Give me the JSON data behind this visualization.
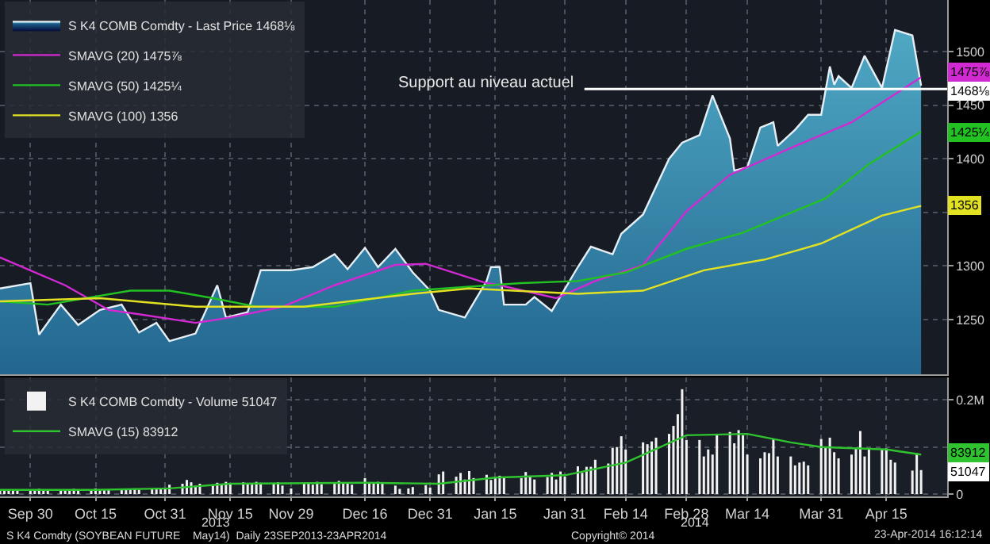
{
  "chart_data": [
    {
      "type": "line",
      "xlim": [
        "2013-09-23",
        "2014-04-29"
      ],
      "ylim": [
        1199,
        1548
      ],
      "xticks": [
        {
          "value": "2013-09-30",
          "label": null
        },
        {
          "value": "2013-10-15",
          "label": null
        },
        {
          "value": "2013-10-31",
          "label": null
        },
        {
          "value": "2013-11-15",
          "label": null
        },
        {
          "value": "2013-11-29",
          "label": null
        },
        {
          "value": "2013-12-16",
          "label": null
        },
        {
          "value": "2013-12-31",
          "label": null
        },
        {
          "value": "2014-01-15",
          "label": null
        },
        {
          "value": "2014-01-31",
          "label": null
        },
        {
          "value": "2014-02-14",
          "label": null
        },
        {
          "value": "2014-02-28",
          "label": null
        },
        {
          "value": "2014-03-14",
          "label": null
        },
        {
          "value": "2014-03-31",
          "label": null
        },
        {
          "value": "2014-04-15",
          "label": null
        }
      ],
      "yticks": [
        1250,
        1300,
        {
          "value": 1350,
          "label": null
        },
        1400,
        1450,
        1500
      ],
      "tick_labels": "y",
      "grid": true,
      "legend": "top left",
      "series": [
        {
          "name": "S K4 COMB Comdty - Last Price 1468⅛",
          "type": "area",
          "color": "#e6eef5",
          "x": [
            "2013-09-23",
            "2013-09-30",
            "2013-10-02",
            "2013-10-07",
            "2013-10-11",
            "2013-10-16",
            "2013-10-21",
            "2013-10-25",
            "2013-10-29",
            "2013-11-01",
            "2013-11-07",
            "2013-11-12",
            "2013-11-14",
            "2013-11-19",
            "2013-11-22",
            "2013-11-29",
            "2013-12-04",
            "2013-12-09",
            "2013-12-12",
            "2013-12-16",
            "2013-12-19",
            "2013-12-23",
            "2013-12-27",
            "2013-12-31",
            "2014-01-02",
            "2014-01-08",
            "2014-01-13",
            "2014-01-14",
            "2014-01-16",
            "2014-01-17",
            "2014-01-22",
            "2014-01-24",
            "2014-01-28",
            "2014-02-03",
            "2014-02-06",
            "2014-02-11",
            "2014-02-13",
            "2014-02-18",
            "2014-02-24",
            "2014-02-27",
            "2014-03-03",
            "2014-03-06",
            "2014-03-10",
            "2014-03-11",
            "2014-03-14",
            "2014-03-17",
            "2014-03-20",
            "2014-03-21",
            "2014-03-25",
            "2014-03-28",
            "2014-03-31",
            "2014-04-02",
            "2014-04-03",
            "2014-04-04",
            "2014-04-07",
            "2014-04-10",
            "2014-04-14",
            "2014-04-17",
            "2014-04-21",
            "2014-04-23"
          ],
          "values": [
            1279,
            1284,
            1236,
            1264,
            1245,
            1259,
            1264,
            1238,
            1247,
            1230,
            1237,
            1282,
            1252,
            1257,
            1296,
            1296,
            1299,
            1311,
            1297,
            1317,
            1299,
            1316,
            1294,
            1277,
            1259,
            1252,
            1286,
            1299,
            1299,
            1264,
            1264,
            1271,
            1258,
            1299,
            1318,
            1311,
            1330,
            1348,
            1400,
            1415,
            1422,
            1459,
            1419,
            1389,
            1392,
            1429,
            1434,
            1412,
            1427,
            1441,
            1441,
            1486,
            1469,
            1477,
            1466,
            1496,
            1466,
            1520,
            1515,
            1468.125
          ]
        },
        {
          "name": "SMAVG (20) 1475⅞",
          "color": "#d22ad2",
          "x": [
            "2013-09-23",
            "2013-10-08",
            "2013-10-18",
            "2013-10-25",
            "2013-11-07",
            "2013-11-15",
            "2013-11-27",
            "2013-12-09",
            "2013-12-23",
            "2013-12-30",
            "2014-01-13",
            "2014-01-16",
            "2014-01-29",
            "2014-02-07",
            "2014-02-18",
            "2014-02-28",
            "2014-03-10",
            "2014-03-24",
            "2014-04-07",
            "2014-04-23"
          ],
          "values": [
            1308,
            1282,
            1259,
            1255,
            1247,
            1252,
            1262,
            1282,
            1301,
            1302,
            1284,
            1282,
            1270,
            1286,
            1301,
            1351,
            1385,
            1410,
            1434,
            1475.875
          ]
        },
        {
          "name": "SMAVG (50) 1425¼",
          "color": "#22c222",
          "x": [
            "2013-09-23",
            "2013-10-04",
            "2013-10-23",
            "2013-11-01",
            "2013-11-11",
            "2013-11-21",
            "2013-12-09",
            "2013-12-27",
            "2014-01-21",
            "2014-02-03",
            "2014-02-14",
            "2014-02-28",
            "2014-03-13",
            "2014-04-01",
            "2014-04-11",
            "2014-04-23"
          ],
          "values": [
            1267,
            1264,
            1277,
            1277,
            1270,
            1262,
            1262,
            1277,
            1284,
            1286,
            1294,
            1316,
            1331,
            1363,
            1395,
            1425.25
          ]
        },
        {
          "name": "SMAVG (100) 1356",
          "color": "#e2e222",
          "x": [
            "2013-09-23",
            "2013-10-16",
            "2013-11-07",
            "2013-12-02",
            "2013-12-27",
            "2014-01-09",
            "2014-02-03",
            "2014-02-18",
            "2014-03-04",
            "2014-03-18",
            "2014-03-31",
            "2014-04-14",
            "2014-04-23"
          ],
          "values": [
            1267,
            1270,
            1262,
            1262,
            1274,
            1279,
            1274,
            1277,
            1296,
            1306,
            1321,
            1347,
            1356
          ]
        }
      ],
      "ref_lines": [
        {
          "axis": "y",
          "value": 1465,
          "label": "Support au niveau actuel",
          "color": "#ffffff"
        }
      ],
      "annotations": [
        {
          "text": "1475⅞",
          "x": "2014-04-23",
          "y": 1475.875
        },
        {
          "text": "1468⅛",
          "x": "2014-04-23",
          "y": 1468.125
        },
        {
          "text": "1425¼",
          "x": "2014-04-23",
          "y": 1425.25
        },
        {
          "text": "1356",
          "x": "2014-04-23",
          "y": 1356
        }
      ]
    },
    {
      "type": "bar",
      "xlim": [
        "2013-09-23",
        "2014-04-29"
      ],
      "ylim": [
        -5000,
        248000
      ],
      "xticks": [
        {
          "value": "2013-09-30",
          "label": "Sep 30"
        },
        {
          "value": "2013-10-15",
          "label": "Oct 15"
        },
        {
          "value": "2013-10-31",
          "label": "Oct 31"
        },
        {
          "value": "2013-11-15",
          "label": "Nov 15"
        },
        {
          "value": "2013-11-29",
          "label": "Nov 29"
        },
        {
          "value": "2013-12-16",
          "label": "Dec 16"
        },
        {
          "value": "2013-12-31",
          "label": "Dec 31"
        },
        {
          "value": "2014-01-15",
          "label": "Jan 15"
        },
        {
          "value": "2014-01-31",
          "label": "Jan 31"
        },
        {
          "value": "2014-02-14",
          "label": "Feb 14"
        },
        {
          "value": "2014-02-28",
          "label": "Feb 28"
        },
        {
          "value": "2014-03-14",
          "label": "Mar 14"
        },
        {
          "value": "2014-03-31",
          "label": "Mar 31"
        },
        {
          "value": "2014-04-15",
          "label": "Apr 15"
        }
      ],
      "yticks": [
        0,
        {
          "value": 100000,
          "label": null
        },
        {
          "value": 200000,
          "label": "0.2M"
        }
      ],
      "grid": true,
      "legend": "top left",
      "series": [
        {
          "name": "S K4 COMB Comdty - Volume 51047",
          "color": "#f2f2f2",
          "x": [
            "2013-09-23",
            "2013-09-24",
            "2013-09-25",
            "2013-09-26",
            "2013-09-27",
            "2013-09-30",
            "2013-10-01",
            "2013-10-02",
            "2013-10-03",
            "2013-10-04",
            "2013-10-07",
            "2013-10-08",
            "2013-10-09",
            "2013-10-10",
            "2013-10-11",
            "2013-10-14",
            "2013-10-15",
            "2013-10-16",
            "2013-10-17",
            "2013-10-18",
            "2013-10-21",
            "2013-10-22",
            "2013-10-23",
            "2013-10-24",
            "2013-10-25",
            "2013-10-28",
            "2013-10-29",
            "2013-10-30",
            "2013-10-31",
            "2013-11-01",
            "2013-11-04",
            "2013-11-05",
            "2013-11-06",
            "2013-11-07",
            "2013-11-08",
            "2013-11-11",
            "2013-11-12",
            "2013-11-13",
            "2013-11-14",
            "2013-11-15",
            "2013-11-18",
            "2013-11-19",
            "2013-11-20",
            "2013-11-21",
            "2013-11-22",
            "2013-11-25",
            "2013-11-26",
            "2013-11-27",
            "2013-11-29",
            "2013-12-02",
            "2013-12-03",
            "2013-12-04",
            "2013-12-05",
            "2013-12-06",
            "2013-12-09",
            "2013-12-10",
            "2013-12-11",
            "2013-12-12",
            "2013-12-13",
            "2013-12-16",
            "2013-12-17",
            "2013-12-18",
            "2013-12-19",
            "2013-12-20",
            "2013-12-23",
            "2013-12-24",
            "2013-12-26",
            "2013-12-27",
            "2013-12-30",
            "2013-12-31",
            "2014-01-02",
            "2014-01-03",
            "2014-01-06",
            "2014-01-07",
            "2014-01-08",
            "2014-01-09",
            "2014-01-10",
            "2014-01-13",
            "2014-01-14",
            "2014-01-15",
            "2014-01-16",
            "2014-01-17",
            "2014-01-21",
            "2014-01-22",
            "2014-01-23",
            "2014-01-24",
            "2014-01-27",
            "2014-01-28",
            "2014-01-29",
            "2014-01-30",
            "2014-01-31",
            "2014-02-03",
            "2014-02-04",
            "2014-02-05",
            "2014-02-06",
            "2014-02-07",
            "2014-02-10",
            "2014-02-11",
            "2014-02-12",
            "2014-02-13",
            "2014-02-14",
            "2014-02-18",
            "2014-02-19",
            "2014-02-20",
            "2014-02-21",
            "2014-02-24",
            "2014-02-25",
            "2014-02-26",
            "2014-02-27",
            "2014-02-28",
            "2014-03-03",
            "2014-03-04",
            "2014-03-05",
            "2014-03-06",
            "2014-03-07",
            "2014-03-10",
            "2014-03-11",
            "2014-03-12",
            "2014-03-13",
            "2014-03-14",
            "2014-03-17",
            "2014-03-18",
            "2014-03-19",
            "2014-03-20",
            "2014-03-21",
            "2014-03-24",
            "2014-03-25",
            "2014-03-26",
            "2014-03-27",
            "2014-03-28",
            "2014-03-31",
            "2014-04-01",
            "2014-04-02",
            "2014-04-03",
            "2014-04-04",
            "2014-04-07",
            "2014-04-08",
            "2014-04-09",
            "2014-04-10",
            "2014-04-11",
            "2014-04-14",
            "2014-04-15",
            "2014-04-16",
            "2014-04-17",
            "2014-04-21",
            "2014-04-22",
            "2014-04-23"
          ],
          "values": [
            9000,
            7000,
            8000,
            10000,
            8000,
            9000,
            8000,
            11000,
            9000,
            7000,
            10000,
            8000,
            9000,
            11000,
            8000,
            10000,
            12000,
            9000,
            8000,
            10000,
            11000,
            9000,
            10000,
            12000,
            9000,
            11000,
            13000,
            12000,
            14000,
            20000,
            22000,
            30000,
            25000,
            18000,
            22000,
            20000,
            24000,
            19000,
            26000,
            22000,
            25000,
            23000,
            20000,
            26000,
            24000,
            22000,
            25000,
            18000,
            12000,
            22000,
            24000,
            20000,
            26000,
            21000,
            23000,
            28000,
            22000,
            24000,
            20000,
            34000,
            24000,
            22000,
            26000,
            23000,
            18000,
            11000,
            12000,
            15000,
            19000,
            14000,
            42000,
            48000,
            37000,
            45000,
            31000,
            49000,
            34000,
            41000,
            30000,
            37000,
            39000,
            37000,
            34000,
            47000,
            39000,
            31000,
            36000,
            45000,
            31000,
            48000,
            37000,
            59000,
            45000,
            58000,
            58000,
            73000,
            65000,
            98000,
            100000,
            123000,
            95000,
            110000,
            106000,
            112000,
            120000,
            128000,
            145000,
            170000,
            223000,
            115000,
            115000,
            80000,
            95000,
            84000,
            128000,
            132000,
            108000,
            136000,
            125000,
            84000,
            76000,
            89000,
            87000,
            117000,
            80000,
            80000,
            61000,
            67000,
            69000,
            61000,
            117000,
            100000,
            120000,
            89000,
            76000,
            84000,
            98000,
            134000,
            80000,
            95000,
            95000,
            97000,
            73000,
            67000,
            50000,
            87000,
            51047
          ]
        },
        {
          "name": "SMAVG (15) 83912",
          "type": "line",
          "color": "#2fc42f",
          "x": [
            "2013-09-23",
            "2013-10-15",
            "2013-11-01",
            "2013-11-15",
            "2013-12-16",
            "2014-01-02",
            "2014-01-15",
            "2014-01-31",
            "2014-02-14",
            "2014-02-28",
            "2014-03-14",
            "2014-03-24",
            "2014-03-31",
            "2014-04-15",
            "2014-04-23"
          ],
          "values": [
            9000,
            9000,
            12000,
            22000,
            24000,
            22000,
            35000,
            40000,
            67000,
            125000,
            128000,
            110000,
            100000,
            95000,
            83912
          ]
        }
      ],
      "annotations": [
        {
          "text": "83912",
          "x": "2014-04-23",
          "y": 83912
        },
        {
          "text": "51047",
          "x": "2014-04-23",
          "y": 51047
        },
        "2013",
        "2014",
        "S K4 Comdty (SOYBEAN FUTURE    May14)  Daily 23SEP2013-23APR2014",
        "Copyright© 2014",
        "23-Apr-2014 16:12:14"
      ]
    }
  ]
}
